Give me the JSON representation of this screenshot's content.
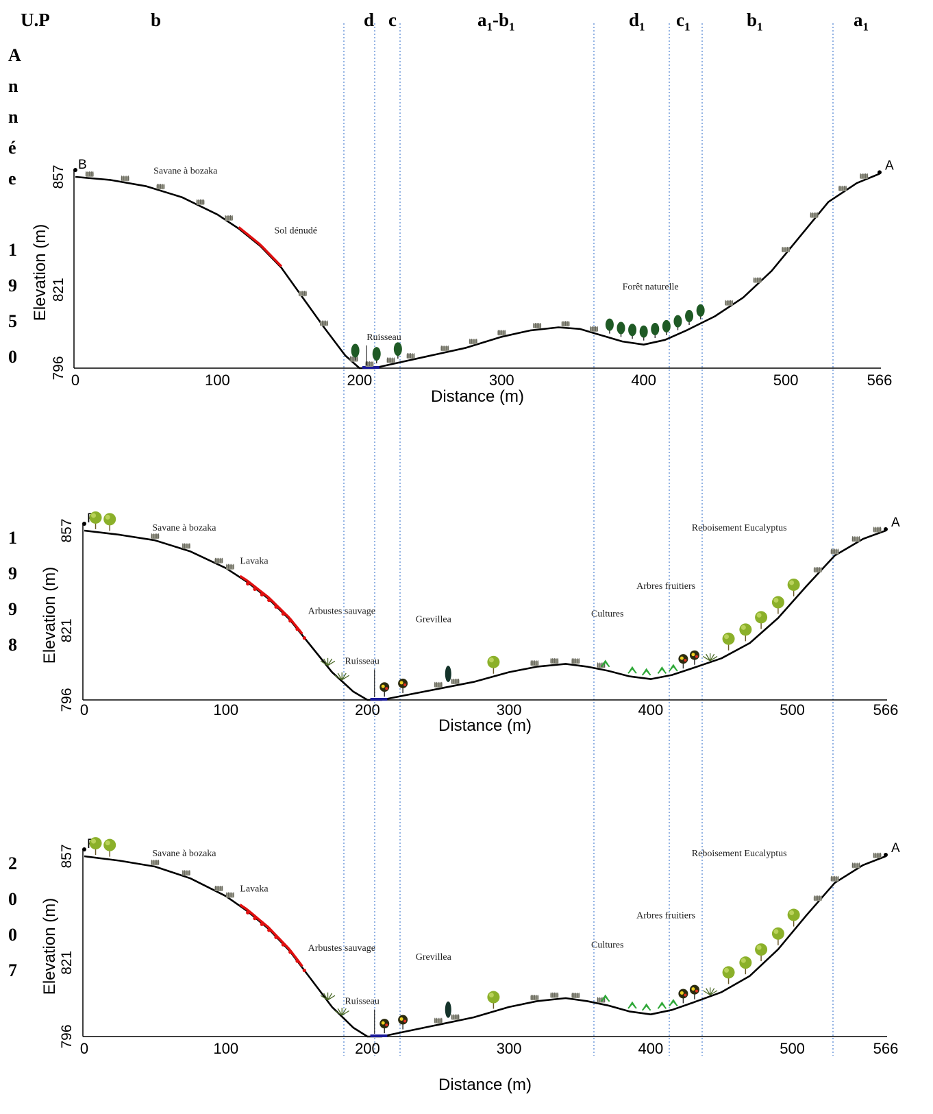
{
  "header": {
    "up_label": "U.P",
    "zones": [
      {
        "base": "b",
        "sub": ""
      },
      {
        "base": "d",
        "sub": ""
      },
      {
        "base": "c",
        "sub": ""
      },
      {
        "base": "a",
        "sub": "1",
        "base2": "-b",
        "sub2": "1"
      },
      {
        "base": "d",
        "sub": "1"
      },
      {
        "base": "c",
        "sub": "1"
      },
      {
        "base": "b",
        "sub": "1"
      },
      {
        "base": "a",
        "sub": "1"
      }
    ],
    "annee_letters": [
      "A",
      "n",
      "n",
      "é",
      "e"
    ]
  },
  "colors": {
    "profile": "#000000",
    "eroded": "#e01010",
    "divider": "#4a7fd0",
    "grass": "#9a9a8c",
    "forest_tree": "#1f5a25",
    "eucalyptus": "#8bb02a",
    "crop": "#2fa838",
    "stream": "#1a1a9a"
  },
  "chart_data": [
    {
      "type": "line",
      "year_digits": [
        "1",
        "9",
        "5",
        "0"
      ],
      "xlabel": "Distance (m)",
      "ylabel": "Elevation (m)",
      "xlim": [
        0,
        566
      ],
      "ylim": [
        796,
        857
      ],
      "xticks": [
        "0",
        "100",
        "200",
        "300",
        "400",
        "500",
        "566"
      ],
      "yticks": [
        "796",
        "821",
        "857"
      ],
      "end_left": "B",
      "end_right": "A",
      "profile": {
        "x": [
          0,
          25,
          50,
          75,
          100,
          115,
          130,
          145,
          160,
          175,
          190,
          200,
          210,
          225,
          250,
          275,
          300,
          320,
          340,
          355,
          370,
          385,
          400,
          415,
          430,
          450,
          470,
          490,
          510,
          530,
          550,
          566
        ],
        "y": [
          857,
          856,
          854,
          850.5,
          845,
          840.5,
          835,
          828,
          818.5,
          809,
          800,
          796,
          796,
          797.5,
          800,
          802.5,
          806,
          808,
          809,
          808.5,
          806.5,
          804.5,
          803.5,
          805,
          808,
          812.5,
          818.5,
          827,
          838,
          849,
          855,
          858
        ]
      },
      "eroded_segment": [
        115,
        145
      ],
      "labels": [
        {
          "text": "Savane à bozaka",
          "x": 55,
          "y": 858
        },
        {
          "text": "Sol dénudé",
          "x": 140,
          "y": 839
        },
        {
          "text": "Ruisseau",
          "x": 205,
          "y": 805
        },
        {
          "text": "Forêt naturelle",
          "x": 385,
          "y": 821
        }
      ]
    },
    {
      "type": "line",
      "year_digits": [
        "1",
        "9",
        "9",
        "8"
      ],
      "xlabel": "Distance (m)",
      "ylabel": "Elevation (m)",
      "xlim": [
        0,
        566
      ],
      "ylim": [
        796,
        857
      ],
      "xticks": [
        "0",
        "100",
        "200",
        "300",
        "400",
        "500",
        "566"
      ],
      "yticks": [
        "796",
        "821",
        "857"
      ],
      "end_left": "F",
      "end_right": "A",
      "profile": {
        "x": [
          0,
          25,
          50,
          75,
          100,
          115,
          130,
          145,
          160,
          175,
          190,
          200,
          210,
          225,
          250,
          275,
          300,
          320,
          340,
          355,
          370,
          385,
          400,
          415,
          430,
          450,
          470,
          490,
          510,
          530,
          550,
          566
        ],
        "y": [
          857,
          855.5,
          853.5,
          849.5,
          843.5,
          838.5,
          832.5,
          825,
          815.5,
          806,
          799,
          796,
          796,
          797.5,
          800,
          802.5,
          806,
          808,
          809,
          808,
          806.5,
          804.5,
          803.5,
          805,
          807.5,
          811,
          816.5,
          825.5,
          837,
          848,
          854,
          857
        ]
      },
      "eroded_segment": [
        110,
        155
      ],
      "labels": [
        {
          "text": "Savane à bozaka",
          "x": 48,
          "y": 857
        },
        {
          "text": "Lavaka",
          "x": 110,
          "y": 845
        },
        {
          "text": "Arbustes sauvage",
          "x": 158,
          "y": 827
        },
        {
          "text": "Ruisseau",
          "x": 184,
          "y": 809
        },
        {
          "text": "Grevillea",
          "x": 234,
          "y": 824
        },
        {
          "text": "Cultures",
          "x": 358,
          "y": 826
        },
        {
          "text": "Arbres fruitiers",
          "x": 390,
          "y": 836
        },
        {
          "text": "Reboisement Eucalyptus",
          "x": 429,
          "y": 857
        }
      ]
    },
    {
      "type": "line",
      "year_digits": [
        "2",
        "0",
        "0",
        "7"
      ],
      "xlabel": "Distance (m)",
      "ylabel": "Elevation (m)",
      "xlim": [
        0,
        566
      ],
      "ylim": [
        796,
        857
      ],
      "xticks": [
        "0",
        "100",
        "200",
        "300",
        "400",
        "500",
        "566"
      ],
      "yticks": [
        "796",
        "821",
        "857"
      ],
      "end_left": "F",
      "end_right": "A",
      "profile": {
        "x": [
          0,
          25,
          50,
          75,
          100,
          115,
          130,
          145,
          160,
          175,
          190,
          200,
          210,
          225,
          250,
          275,
          300,
          320,
          340,
          355,
          370,
          385,
          400,
          415,
          430,
          450,
          470,
          490,
          510,
          530,
          550,
          566
        ],
        "y": [
          857,
          855.5,
          853.5,
          849.5,
          843.5,
          838.5,
          832.5,
          825,
          815.5,
          806,
          799,
          796,
          796,
          797.5,
          800,
          802.5,
          806,
          808,
          809,
          808,
          806.5,
          804.5,
          803.5,
          805,
          807.5,
          811,
          816.5,
          825.5,
          837,
          848,
          854,
          857
        ]
      },
      "eroded_segment": [
        110,
        155
      ],
      "labels": [
        {
          "text": "Savane à bozaka",
          "x": 48,
          "y": 857
        },
        {
          "text": "Lavaka",
          "x": 110,
          "y": 845
        },
        {
          "text": "Arbustes sauvage",
          "x": 158,
          "y": 825
        },
        {
          "text": "Ruisseau",
          "x": 184,
          "y": 807
        },
        {
          "text": "Grevillea",
          "x": 234,
          "y": 822
        },
        {
          "text": "Cultures",
          "x": 358,
          "y": 826
        },
        {
          "text": "Arbres fruitiers",
          "x": 390,
          "y": 836
        },
        {
          "text": "Reboisement Eucalyptus",
          "x": 429,
          "y": 857
        }
      ]
    }
  ]
}
